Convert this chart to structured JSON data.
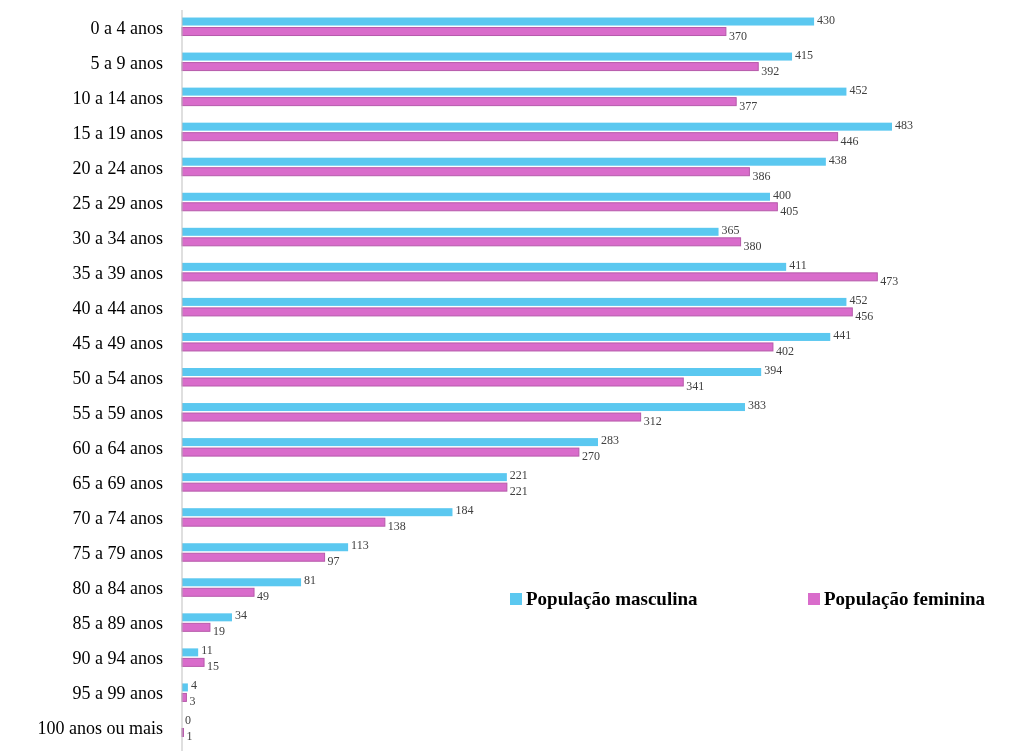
{
  "chart_data": {
    "type": "bar",
    "orientation": "horizontal",
    "data_labels": true,
    "legend": "bottom right",
    "categories": [
      "0 a 4 anos",
      "5 a 9 anos",
      "10 a 14 anos",
      "15 a 19 anos",
      "20 a 24 anos",
      "25 a 29 anos",
      "30 a 34 anos",
      "35 a 39 anos",
      "40 a 44 anos",
      "45 a 49 anos",
      "50 a 54 anos",
      "55 a 59 anos",
      "60 a 64 anos",
      "65 a 69 anos",
      "70 a 74 anos",
      "75 a 79 anos",
      "80 a 84 anos",
      "85 a 89 anos",
      "90 a 94 anos",
      "95 a 99 anos",
      "100 anos ou mais"
    ],
    "series": [
      {
        "name": "População masculina",
        "color": "#5bc8f0",
        "values": [
          430,
          415,
          452,
          483,
          438,
          400,
          365,
          411,
          452,
          441,
          394,
          383,
          283,
          221,
          184,
          113,
          81,
          34,
          11,
          4,
          0
        ]
      },
      {
        "name": "População feminina",
        "color": "#d96ccb",
        "values": [
          370,
          392,
          377,
          446,
          386,
          405,
          380,
          473,
          456,
          402,
          341,
          312,
          270,
          221,
          138,
          97,
          49,
          19,
          15,
          3,
          1
        ]
      }
    ]
  }
}
